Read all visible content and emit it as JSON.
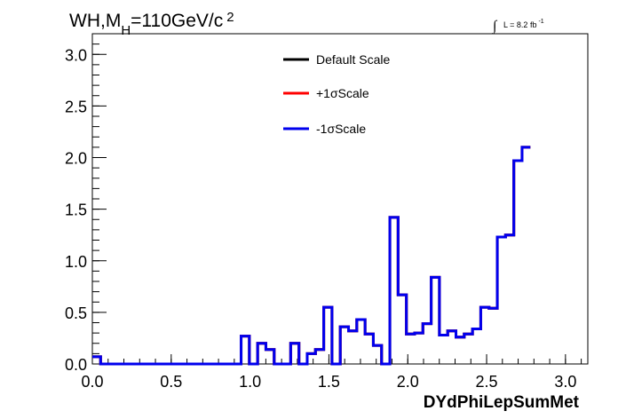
{
  "chart_data": {
    "type": "line",
    "title_main": "WH,M",
    "title_sub": "H",
    "title_rest": "=110GeV/c",
    "title_sup": "2",
    "lumi_text": "L = 8.2 fb",
    "lumi_sup": "-1",
    "integral_symbol": "∫",
    "xlabel": "DYdPhiLepSumMet",
    "xlim": [
      0,
      3.1416
    ],
    "ylim": [
      0,
      3.2
    ],
    "x_ticks": [
      0.0,
      0.5,
      1.0,
      1.5,
      2.0,
      2.5,
      3.0
    ],
    "x_tick_labels": [
      "0.0",
      "0.5",
      "1.0",
      "1.5",
      "2.0",
      "2.5",
      "3.0"
    ],
    "y_ticks": [
      0.0,
      0.5,
      1.0,
      1.5,
      2.0,
      2.5,
      3.0
    ],
    "y_tick_labels": [
      "0.0",
      "0.5",
      "1.0",
      "1.5",
      "2.0",
      "2.5",
      "3.0"
    ],
    "bin_width": 0.0524,
    "series": [
      {
        "name": "Default Scale",
        "color": "#000000",
        "values": [
          0.07,
          0,
          0,
          0,
          0,
          0,
          0,
          0,
          0,
          0,
          0,
          0,
          0,
          0,
          0,
          0,
          0,
          0,
          0.27,
          0,
          0.2,
          0.14,
          0,
          0,
          0.2,
          0,
          0.1,
          0.14,
          0.55,
          0,
          0.36,
          0.32,
          0.43,
          0.29,
          0.18,
          0,
          1.42,
          0.67,
          0.29,
          0.3,
          0.39,
          0.84,
          0.28,
          0.32,
          0.26,
          0.29,
          0.34,
          0.55,
          0.54,
          1.23,
          1.25,
          1.97,
          2.1
        ]
      },
      {
        "name": "+1σScale",
        "color": "#ff0000",
        "values": [
          0.07,
          0,
          0,
          0,
          0,
          0,
          0,
          0,
          0,
          0,
          0,
          0,
          0,
          0,
          0,
          0,
          0,
          0,
          0.27,
          0,
          0.2,
          0.14,
          0,
          0,
          0.2,
          0,
          0.1,
          0.14,
          0.55,
          0,
          0.36,
          0.32,
          0.43,
          0.29,
          0.18,
          0,
          1.42,
          0.67,
          0.29,
          0.3,
          0.39,
          0.84,
          0.28,
          0.32,
          0.26,
          0.29,
          0.34,
          0.55,
          0.54,
          1.23,
          1.25,
          1.97,
          2.1
        ]
      },
      {
        "name": "-1σScale",
        "color": "#0000ee",
        "values": [
          0.07,
          0,
          0,
          0,
          0,
          0,
          0,
          0,
          0,
          0,
          0,
          0,
          0,
          0,
          0,
          0,
          0,
          0,
          0.27,
          0,
          0.2,
          0.14,
          0,
          0,
          0.2,
          0,
          0.1,
          0.14,
          0.55,
          0,
          0.36,
          0.32,
          0.43,
          0.29,
          0.18,
          0,
          1.42,
          0.67,
          0.29,
          0.3,
          0.39,
          0.84,
          0.28,
          0.32,
          0.26,
          0.29,
          0.34,
          0.55,
          0.54,
          1.23,
          1.25,
          1.97,
          2.1
        ]
      }
    ]
  }
}
